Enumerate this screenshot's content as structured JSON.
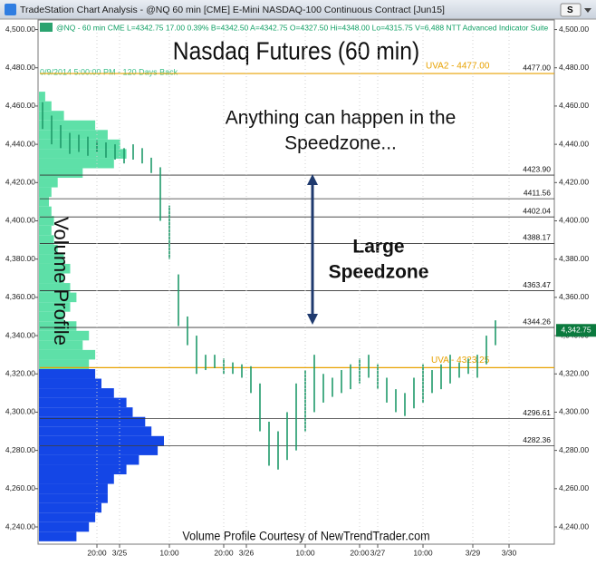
{
  "chart_data": {
    "type": "ohlc",
    "window_title": "TradeStation Chart Analysis - @NQ 60 min [CME] E-Mini NASDAQ-100 Continuous Contract [Jun15]",
    "toolbar_button": "S",
    "info_line": "@NQ - 60 min CME  L=4342.75  17.00  0.39%  B=4342.50  A=4342.75  O=4327.50  Hi=4348.00  Lo=4315.75  V=6,488  NTT Advanced Indicator Suite",
    "date_note": "0/9/2014 5:00:00 PM - 120 Days Back",
    "title": "Nasdaq Futures (60 min)",
    "annotations": [
      "Anything can happen in the",
      "Speedzone...",
      "Large",
      "Speedzone"
    ],
    "side_label": "Volume Profile",
    "credit": "Volume Profile Courtesy of NewTrendTrader.com",
    "color": "#1f9a6a",
    "highs": [
      4462,
      4455,
      4450,
      4446,
      4445,
      4444,
      4442,
      4441,
      4440,
      4438,
      4440,
      4438,
      4433,
      4428,
      4408,
      4372,
      4350,
      4340,
      4330,
      4330,
      4328,
      4326,
      4325,
      4324,
      4315,
      4295,
      4290,
      4300,
      4315,
      4322,
      4330,
      4320,
      4318,
      4322,
      4325,
      4328,
      4330,
      4325,
      4318,
      4312,
      4310,
      4318,
      4325,
      4322,
      4325,
      4330,
      4326,
      4328,
      4330,
      4340,
      4348
    ],
    "lows": [
      4448,
      4440,
      4438,
      4435,
      4436,
      4434,
      4436,
      4433,
      4432,
      4430,
      4432,
      4430,
      4425,
      4400,
      4380,
      4345,
      4335,
      4320,
      4322,
      4323,
      4320,
      4320,
      4318,
      4310,
      4290,
      4272,
      4270,
      4275,
      4280,
      4290,
      4300,
      4305,
      4308,
      4310,
      4312,
      4315,
      4318,
      4312,
      4305,
      4300,
      4298,
      4302,
      4305,
      4310,
      4312,
      4315,
      4318,
      4320,
      4318,
      4325,
      4335
    ],
    "xlim": [
      -0.5,
      56.5
    ],
    "xticks": [
      {
        "value": 6,
        "label": "20:00"
      },
      {
        "value": 8.5,
        "label": "3/25"
      },
      {
        "value": 14,
        "label": "10:00"
      },
      {
        "value": 20,
        "label": "20:00"
      },
      {
        "value": 22.5,
        "label": "3/26"
      },
      {
        "value": 29,
        "label": "10:00"
      },
      {
        "value": 35,
        "label": "20:00"
      },
      {
        "value": 37,
        "label": "3/27"
      },
      {
        "value": 42,
        "label": "10:00"
      },
      {
        "value": 47.5,
        "label": "3/29"
      },
      {
        "value": 51.5,
        "label": "3/30"
      }
    ],
    "ylim": [
      4231,
      4505
    ],
    "yticks": [
      {
        "value": 4240,
        "label": "4,240.00"
      },
      {
        "value": 4260,
        "label": "4,260.00"
      },
      {
        "value": 4280,
        "label": "4,280.00"
      },
      {
        "value": 4300,
        "label": "4,300.00"
      },
      {
        "value": 4320,
        "label": "4,320.00"
      },
      {
        "value": 4340,
        "label": "4,340.00"
      },
      {
        "value": 4360,
        "label": "4,360.00"
      },
      {
        "value": 4380,
        "label": "4,380.00"
      },
      {
        "value": 4400,
        "label": "4,400.00"
      },
      {
        "value": 4420,
        "label": "4,420.00"
      },
      {
        "value": 4440,
        "label": "4,440.00"
      },
      {
        "value": 4460,
        "label": "4,460.00"
      },
      {
        "value": 4480,
        "label": "4,480.00"
      },
      {
        "value": 4500,
        "label": "4,500.00"
      }
    ],
    "last_price": {
      "value": 4342.75,
      "label": "4,342.75",
      "color": "#0b7a3e"
    },
    "levels": [
      {
        "value": 4477,
        "label": "4477.00"
      },
      {
        "value": 4423.9,
        "label": "4423.90"
      },
      {
        "value": 4411.56,
        "label": "4411.56"
      },
      {
        "value": 4402.04,
        "label": "4402.04"
      },
      {
        "value": 4388.17,
        "label": "4388.17"
      },
      {
        "value": 4363.47,
        "label": "4363.47"
      },
      {
        "value": 4344.26,
        "label": "4344.26"
      },
      {
        "value": 4296.61,
        "label": "4296.61"
      },
      {
        "value": 4282.36,
        "label": "4282.36"
      }
    ],
    "uva_color": "#e8a200",
    "uva_lines": [
      {
        "value": 4477,
        "label": "UVA2 - 4477.00"
      },
      {
        "value": 4323.25,
        "label": "UVA - 4323.25"
      }
    ],
    "volume_profile": [
      {
        "color": "#5ee0a8",
        "prices": [
          4465,
          4460,
          4455,
          4450,
          4445,
          4440,
          4435,
          4430,
          4425,
          4420,
          4415,
          4410,
          4405,
          4400,
          4395,
          4390,
          4385,
          4380,
          4375,
          4370,
          4365,
          4360,
          4355,
          4350,
          4345,
          4340,
          4335,
          4330,
          4325
        ],
        "volumes": [
          5,
          10,
          20,
          45,
          55,
          65,
          70,
          60,
          35,
          15,
          10,
          8,
          10,
          12,
          10,
          12,
          15,
          20,
          25,
          20,
          25,
          30,
          25,
          20,
          30,
          40,
          35,
          45,
          40
        ]
      },
      {
        "color": "#1446e6",
        "prices": [
          4320,
          4315,
          4310,
          4305,
          4300,
          4295,
          4290,
          4285,
          4280,
          4275,
          4270,
          4265,
          4260,
          4255,
          4250,
          4245,
          4240,
          4235
        ],
        "volumes": [
          45,
          50,
          60,
          70,
          75,
          85,
          90,
          100,
          95,
          80,
          70,
          60,
          55,
          55,
          50,
          45,
          40,
          30
        ]
      }
    ]
  }
}
